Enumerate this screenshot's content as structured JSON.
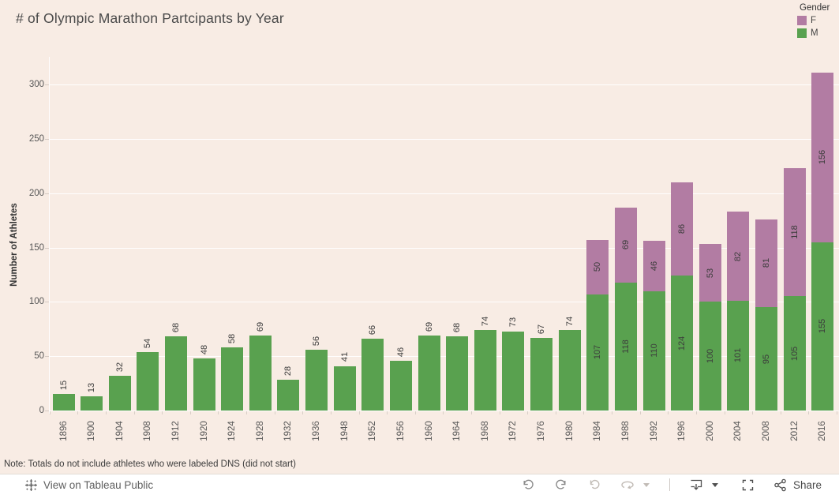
{
  "title": "# of Olympic Marathon Partcipants by Year",
  "legend": {
    "title": "Gender",
    "items": [
      {
        "label": "F",
        "color": "#B27CA3"
      },
      {
        "label": "M",
        "color": "#59A14F"
      }
    ]
  },
  "chart_data": {
    "type": "bar",
    "stacked": true,
    "title": "# of Olympic Marathon Partcipants by Year",
    "xlabel": "",
    "ylabel": "Number of Athletes",
    "categories": [
      "1896",
      "1900",
      "1904",
      "1908",
      "1912",
      "1920",
      "1924",
      "1928",
      "1932",
      "1936",
      "1948",
      "1952",
      "1956",
      "1960",
      "1964",
      "1968",
      "1972",
      "1976",
      "1980",
      "1984",
      "1988",
      "1992",
      "1996",
      "2000",
      "2004",
      "2008",
      "2012",
      "2016"
    ],
    "series": [
      {
        "name": "M",
        "color": "#59A14F",
        "values": [
          15,
          13,
          32,
          54,
          68,
          48,
          58,
          69,
          28,
          56,
          41,
          66,
          46,
          69,
          68,
          74,
          73,
          67,
          74,
          107,
          118,
          110,
          124,
          100,
          101,
          95,
          105,
          155
        ]
      },
      {
        "name": "F",
        "color": "#B27CA3",
        "values": [
          0,
          0,
          0,
          0,
          0,
          0,
          0,
          0,
          0,
          0,
          0,
          0,
          0,
          0,
          0,
          0,
          0,
          0,
          0,
          50,
          69,
          46,
          86,
          53,
          82,
          81,
          118,
          156
        ]
      }
    ],
    "value_labels": true,
    "yticks": [
      0,
      50,
      100,
      150,
      200,
      250,
      300
    ],
    "ylim": [
      0,
      333
    ],
    "grid": true,
    "legend_position": "top-right"
  },
  "note": "Note: Totals do not include athletes who were labeled DNS (did not start)",
  "footer": {
    "brand_label": "View on Tableau Public",
    "brand_icon": "tableau-logo-icon",
    "share_label": "Share",
    "toolbar_icons": [
      "undo-icon",
      "redo-icon",
      "revert-icon",
      "refresh-icon",
      "caret-down-icon",
      "download-icon",
      "caret-down-icon",
      "fullscreen-icon",
      "share-icon"
    ]
  },
  "colors": {
    "background": "#f8ece4",
    "bar_green": "#59A14F",
    "bar_purple": "#B27CA3",
    "gridline": "#ffffff",
    "label_text": "#3c3c3c",
    "axis_text": "#575757"
  }
}
